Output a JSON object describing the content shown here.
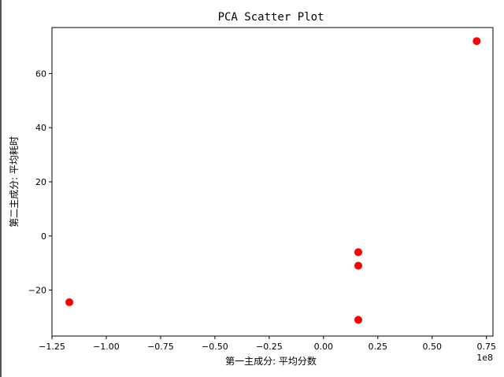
{
  "chart_data": {
    "type": "scatter",
    "title": "PCA Scatter Plot",
    "xlabel": "第一主成分: 平均分数",
    "ylabel": "第二主成分: 平均耗时",
    "x_offset_text": "1e8",
    "xlim": [
      -1.25,
      0.78
    ],
    "ylim": [
      -37,
      77
    ],
    "xticks": [
      -1.25,
      -1.0,
      -0.75,
      -0.5,
      -0.25,
      0.0,
      0.25,
      0.5,
      0.75
    ],
    "xtick_labels": [
      "−1.25",
      "−1.00",
      "−0.75",
      "−0.50",
      "−0.25",
      "0.00",
      "0.25",
      "0.50",
      "0.75"
    ],
    "yticks": [
      -20,
      0,
      20,
      40,
      60
    ],
    "ytick_labels": [
      "−20",
      "0",
      "20",
      "40",
      "60"
    ],
    "point_color": "#ff0000",
    "grid": false,
    "points": [
      {
        "x": -1.17,
        "y": -24.5
      },
      {
        "x": 0.16,
        "y": -6.0
      },
      {
        "x": 0.16,
        "y": -11.0
      },
      {
        "x": 0.16,
        "y": -31.0
      },
      {
        "x": 0.705,
        "y": 72.0
      }
    ]
  }
}
